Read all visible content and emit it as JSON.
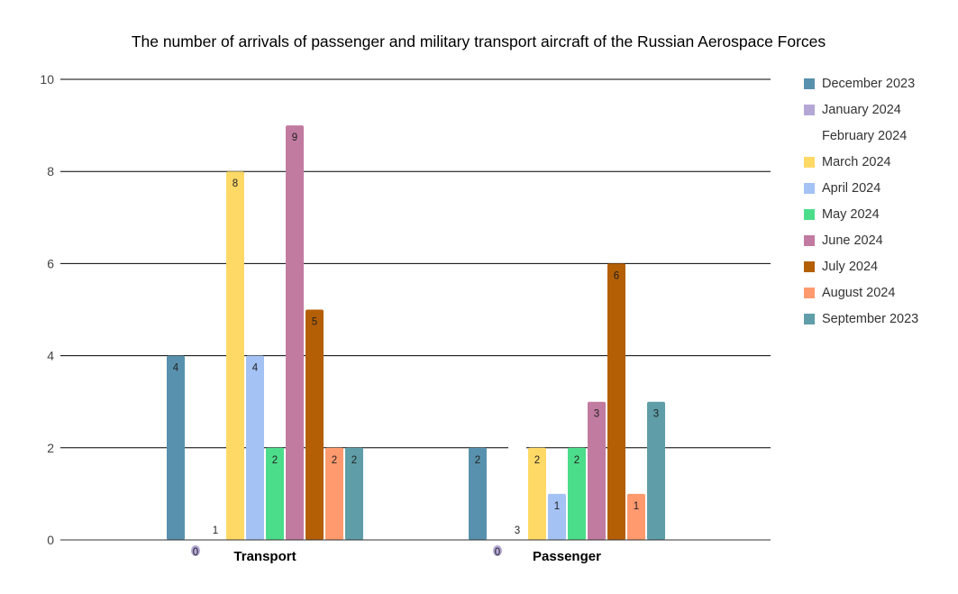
{
  "chart_data": {
    "type": "bar",
    "title": "The number of arrivals of passenger and military transport aircraft of the Russian Aerospace Forces",
    "categories": [
      "Transport",
      "Passenger"
    ],
    "ylim": [
      0,
      10
    ],
    "yticks": [
      0,
      2,
      4,
      6,
      8,
      10
    ],
    "grid": true,
    "legend_position": "right",
    "series": [
      {
        "name": "December 2023",
        "color": "#5891ad",
        "values": [
          4,
          2
        ]
      },
      {
        "name": "January 2024",
        "color": "#b4a7d6",
        "values": [
          0,
          0
        ]
      },
      {
        "name": "February 2024",
        "color": "#ffffff",
        "values": [
          1,
          3
        ]
      },
      {
        "name": "March 2024",
        "color": "#ffd966",
        "values": [
          8,
          2
        ]
      },
      {
        "name": "April 2024",
        "color": "#a4c2f4",
        "values": [
          4,
          1
        ]
      },
      {
        "name": "May 2024",
        "color": "#4cdd8b",
        "values": [
          2,
          2
        ]
      },
      {
        "name": "June 2024",
        "color": "#c27ba0",
        "values": [
          9,
          3
        ]
      },
      {
        "name": "July 2024",
        "color": "#b45f06",
        "values": [
          5,
          6
        ]
      },
      {
        "name": "August 2024",
        "color": "#ff9a6e",
        "values": [
          2,
          1
        ]
      },
      {
        "name": "September 2023",
        "color": "#5f9ea8",
        "values": [
          2,
          3
        ]
      }
    ]
  }
}
